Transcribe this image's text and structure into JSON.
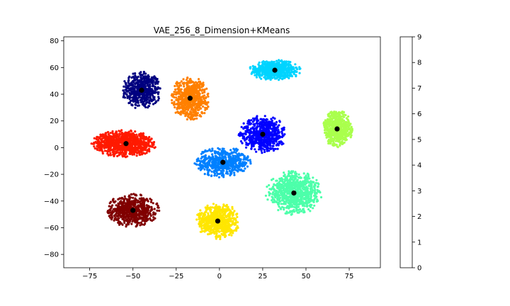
{
  "chart_data": {
    "type": "scatter",
    "title": "VAE_256_8_Dimension+KMeans",
    "xlabel": "",
    "ylabel": "",
    "xlim": [
      -90,
      93
    ],
    "ylim": [
      -90,
      83
    ],
    "xticks": [
      -75,
      -50,
      -25,
      0,
      25,
      50,
      75
    ],
    "yticks": [
      -80,
      -60,
      -40,
      -20,
      0,
      20,
      40,
      60,
      80
    ],
    "grid": false,
    "colormap": "jet",
    "clusters": [
      {
        "label": 0,
        "color": "#000080",
        "center": [
          -45,
          43
        ],
        "spread": [
          9,
          11
        ],
        "count": 520
      },
      {
        "label": 1,
        "color": "#0000ff",
        "center": [
          25,
          10
        ],
        "spread": [
          11,
          11
        ],
        "count": 620
      },
      {
        "label": 2,
        "color": "#0080ff",
        "center": [
          2,
          -11
        ],
        "spread": [
          13,
          9
        ],
        "count": 560
      },
      {
        "label": 3,
        "color": "#00d4ff",
        "center": [
          32,
          58
        ],
        "spread": [
          12,
          6
        ],
        "count": 600
      },
      {
        "label": 4,
        "color": "#4dffaa",
        "center": [
          43,
          -34
        ],
        "spread": [
          13,
          13
        ],
        "count": 820
      },
      {
        "label": 5,
        "color": "#aaff4d",
        "center": [
          68,
          14
        ],
        "spread": [
          7,
          11
        ],
        "count": 600
      },
      {
        "label": 6,
        "color": "#ffe600",
        "center": [
          -1,
          -55
        ],
        "spread": [
          10,
          11
        ],
        "count": 600
      },
      {
        "label": 7,
        "color": "#ff8000",
        "center": [
          -17,
          37
        ],
        "spread": [
          9,
          13
        ],
        "count": 640
      },
      {
        "label": 8,
        "color": "#ff1a00",
        "center": [
          -55,
          3
        ],
        "spread": [
          15,
          8
        ],
        "count": 860
      },
      {
        "label": 9,
        "color": "#800000",
        "center": [
          -50,
          -47
        ],
        "spread": [
          12,
          10
        ],
        "count": 640
      }
    ],
    "centroids": [
      {
        "label": 0,
        "x": -45,
        "y": 43
      },
      {
        "label": 1,
        "x": 25,
        "y": 10
      },
      {
        "label": 2,
        "x": 2,
        "y": -11
      },
      {
        "label": 3,
        "x": 32,
        "y": 58
      },
      {
        "label": 4,
        "x": 43,
        "y": -34
      },
      {
        "label": 5,
        "x": 68,
        "y": 14
      },
      {
        "label": 6,
        "x": -1,
        "y": -55
      },
      {
        "label": 7,
        "x": -17,
        "y": 37
      },
      {
        "label": 8,
        "x": -54,
        "y": 3
      },
      {
        "label": 9,
        "x": -50,
        "y": -47
      }
    ],
    "colorbar": {
      "min": 0,
      "max": 9,
      "ticks": [
        0,
        1,
        2,
        3,
        4,
        5,
        6,
        7,
        8,
        9
      ],
      "segments": [
        "#000080",
        "#0000ff",
        "#0080ff",
        "#00d4ff",
        "#4dffaa",
        "#aaff4d",
        "#ffe600",
        "#ff8000",
        "#ff1a00",
        "#800000"
      ]
    }
  }
}
